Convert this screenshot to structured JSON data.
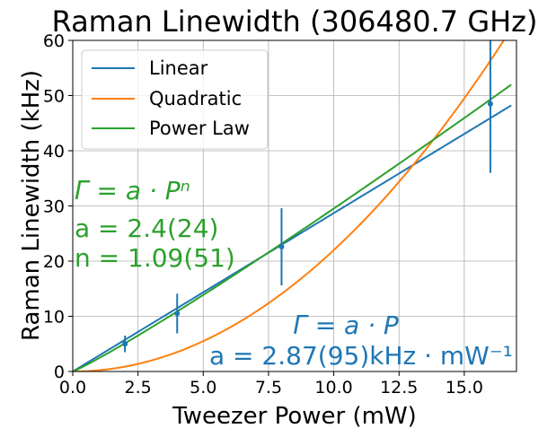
{
  "chart_data": {
    "type": "scatter",
    "title": "Raman Linewidth (306480.7 GHz)",
    "xlabel": "Tweezer Power (mW)",
    "ylabel": "Raman Linewidth (kHz)",
    "xlim": [
      0.0,
      17.0
    ],
    "ylim": [
      0,
      60
    ],
    "xticks": [
      "0.0",
      "2.5",
      "5.0",
      "7.5",
      "10.0",
      "12.5",
      "15.0"
    ],
    "yticks": [
      "0",
      "10",
      "20",
      "30",
      "40",
      "50",
      "60"
    ],
    "grid": true,
    "legend_position": "top-left",
    "data_points": {
      "color": "#1f77b4",
      "x": [
        2,
        4,
        8,
        16
      ],
      "y": [
        5.0,
        10.5,
        22.6,
        48.5
      ],
      "yerr": [
        1.5,
        3.6,
        7.0,
        12.5
      ]
    },
    "fits": [
      {
        "name": "Linear",
        "color": "#1f77b4",
        "model": "linear",
        "a": 2.87,
        "n": 1
      },
      {
        "name": "Quadratic",
        "color": "#ff7f0e",
        "model": "quadratic",
        "a": 0.22,
        "n": 2
      },
      {
        "name": "Power Law",
        "color": "#2ca02c",
        "model": "power",
        "a": 2.4,
        "n": 1.09
      }
    ],
    "fit_x_range": [
      0,
      16.8
    ],
    "annotations": {
      "power_law": {
        "color": "#2ca02c",
        "formula": "Γ = a · Pⁿ",
        "a_line": "a = 2.4(24)",
        "n_line": "n = 1.09(51)"
      },
      "linear": {
        "color": "#1f77b4",
        "formula": "Γ = a · P",
        "a_line": "a = 2.87(95)kHz · mW⁻¹"
      }
    }
  }
}
